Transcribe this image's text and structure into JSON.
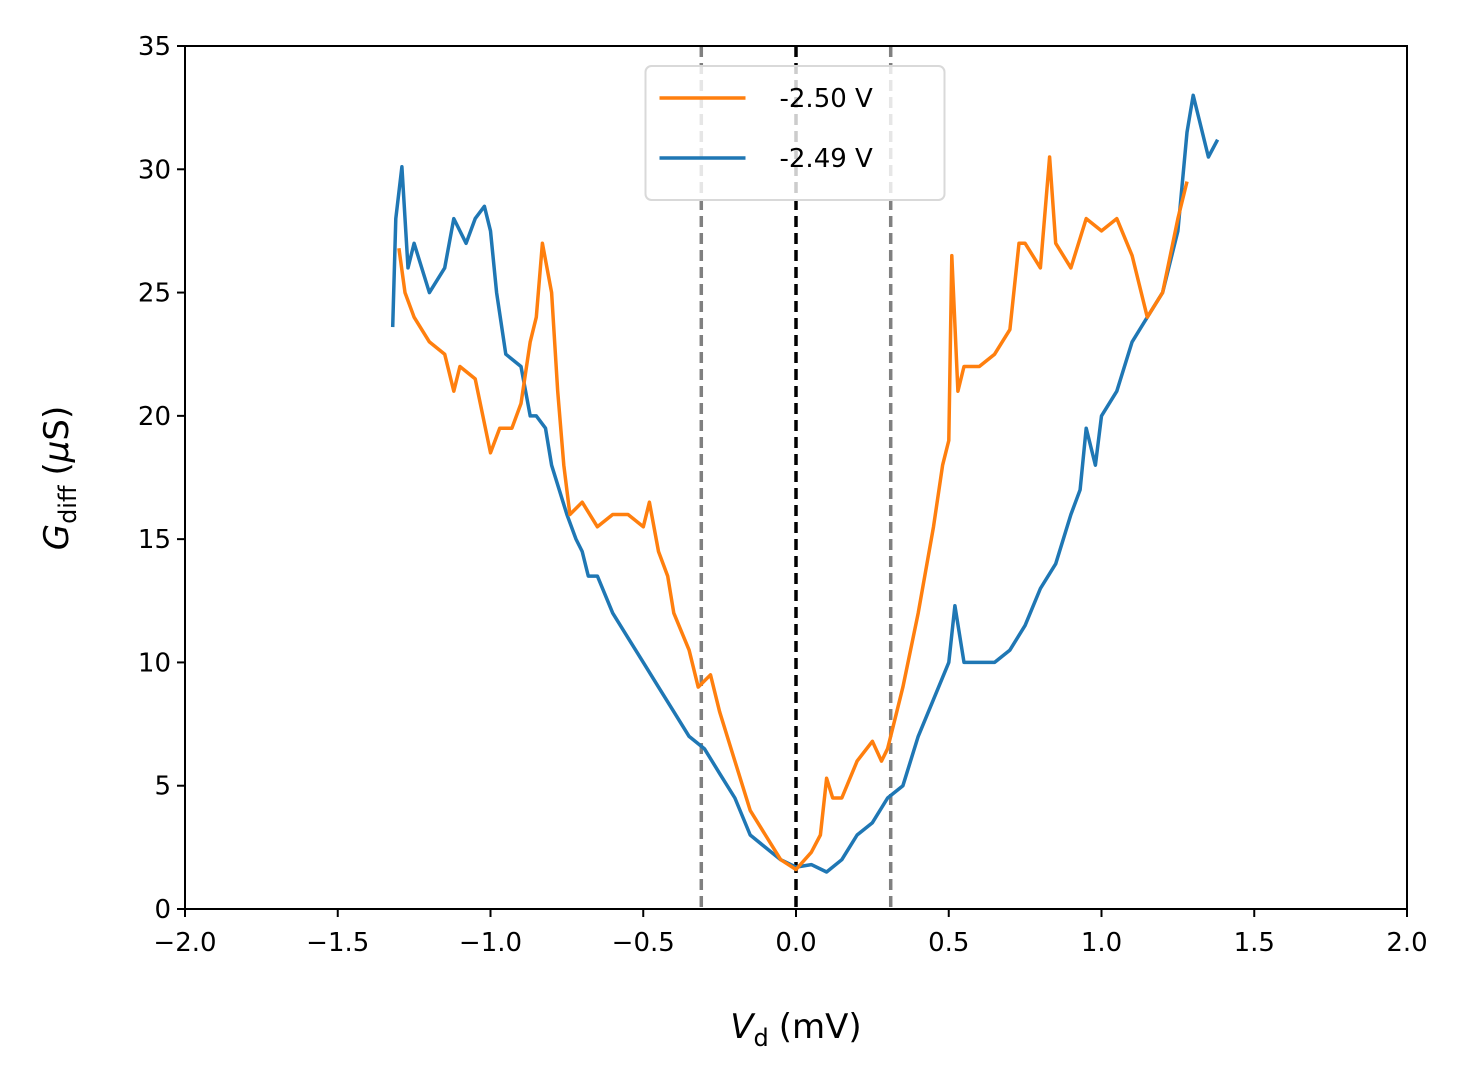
{
  "chart_data": {
    "type": "line",
    "xlabel": [
      "V",
      "d",
      "(mV)"
    ],
    "ylabel": [
      "G",
      "diff",
      "(",
      "μ",
      "S)"
    ],
    "xlim": [
      -2,
      2
    ],
    "ylim": [
      0,
      35
    ],
    "xticks": [
      {
        "value": -2,
        "label": "−2.0"
      },
      {
        "value": -1.5,
        "label": "−1.5"
      },
      {
        "value": -1,
        "label": "−1.0"
      },
      {
        "value": -0.5,
        "label": "−0.5"
      },
      {
        "value": 0,
        "label": "0.0"
      },
      {
        "value": 0.5,
        "label": "0.5"
      },
      {
        "value": 1,
        "label": "1.0"
      },
      {
        "value": 1.5,
        "label": "1.5"
      },
      {
        "value": 2,
        "label": "2.0"
      }
    ],
    "yticks": [
      0,
      5,
      10,
      15,
      20,
      25,
      30,
      35
    ],
    "legend": "upper center",
    "vlines": [
      {
        "x": -0.31,
        "color": "#808080"
      },
      {
        "x": 0,
        "color": "#000000"
      },
      {
        "x": 0.31,
        "color": "#808080"
      }
    ],
    "series": [
      {
        "name": "-2.50 V",
        "color": "#ff7f0e",
        "x": [
          -1.3,
          -1.28,
          -1.25,
          -1.2,
          -1.15,
          -1.12,
          -1.1,
          -1.05,
          -1.0,
          -0.97,
          -0.93,
          -0.9,
          -0.87,
          -0.85,
          -0.83,
          -0.8,
          -0.78,
          -0.76,
          -0.74,
          -0.7,
          -0.65,
          -0.6,
          -0.55,
          -0.5,
          -0.48,
          -0.45,
          -0.42,
          -0.4,
          -0.35,
          -0.32,
          -0.28,
          -0.25,
          -0.2,
          -0.15,
          -0.1,
          -0.05,
          0,
          0.05,
          0.08,
          0.1,
          0.12,
          0.15,
          0.2,
          0.25,
          0.28,
          0.3,
          0.33,
          0.35,
          0.4,
          0.45,
          0.48,
          0.5,
          0.51,
          0.53,
          0.55,
          0.6,
          0.65,
          0.7,
          0.73,
          0.75,
          0.8,
          0.83,
          0.85,
          0.9,
          0.95,
          1.0,
          1.05,
          1.1,
          1.15,
          1.2,
          1.25,
          1.28
        ],
        "values": [
          26.8,
          25,
          24,
          23,
          22.5,
          21,
          22,
          21.5,
          18.5,
          19.5,
          19.5,
          20.5,
          23,
          24,
          27,
          25,
          21,
          18,
          16,
          16.5,
          15.5,
          16,
          16,
          15.5,
          16.5,
          14.5,
          13.5,
          12,
          10.5,
          9,
          9.5,
          8,
          6,
          4,
          3,
          2,
          1.6,
          2.3,
          3,
          5.3,
          4.5,
          4.5,
          6,
          6.8,
          6,
          6.5,
          8,
          9,
          12,
          15.5,
          18,
          19,
          26.5,
          21,
          22,
          22,
          22.5,
          23.5,
          27,
          27,
          26,
          30.5,
          27,
          26,
          28,
          27.5,
          28,
          26.5,
          24,
          25,
          28,
          29.5
        ]
      },
      {
        "name": "-2.49 V",
        "color": "#1f77b4",
        "x": [
          -1.32,
          -1.31,
          -1.29,
          -1.27,
          -1.25,
          -1.2,
          -1.15,
          -1.12,
          -1.08,
          -1.05,
          -1.02,
          -1.0,
          -0.98,
          -0.95,
          -0.9,
          -0.87,
          -0.85,
          -0.82,
          -0.8,
          -0.75,
          -0.72,
          -0.7,
          -0.68,
          -0.65,
          -0.6,
          -0.55,
          -0.5,
          -0.45,
          -0.4,
          -0.35,
          -0.3,
          -0.25,
          -0.2,
          -0.15,
          -0.1,
          -0.05,
          0,
          0.05,
          0.1,
          0.15,
          0.2,
          0.25,
          0.3,
          0.35,
          0.4,
          0.45,
          0.5,
          0.52,
          0.55,
          0.6,
          0.65,
          0.7,
          0.75,
          0.8,
          0.85,
          0.9,
          0.93,
          0.95,
          0.98,
          1.0,
          1.05,
          1.1,
          1.15,
          1.2,
          1.25,
          1.28,
          1.3,
          1.32,
          1.35,
          1.38
        ],
        "values": [
          23.6,
          28,
          30.1,
          26,
          27,
          25,
          26,
          28,
          27,
          28,
          28.5,
          27.5,
          25,
          22.5,
          22,
          20,
          20,
          19.5,
          18,
          16,
          15,
          14.5,
          13.5,
          13.5,
          12,
          11,
          10,
          9,
          8,
          7,
          6.5,
          5.5,
          4.5,
          3,
          2.5,
          2,
          1.7,
          1.8,
          1.5,
          2,
          3,
          3.5,
          4.5,
          5,
          7,
          8.5,
          10,
          12.3,
          10,
          10,
          10,
          10.5,
          11.5,
          13,
          14,
          16,
          17,
          19.5,
          18,
          20,
          21,
          23,
          24,
          25,
          27.5,
          31.5,
          33,
          32,
          30.5,
          31.2
        ]
      }
    ]
  }
}
